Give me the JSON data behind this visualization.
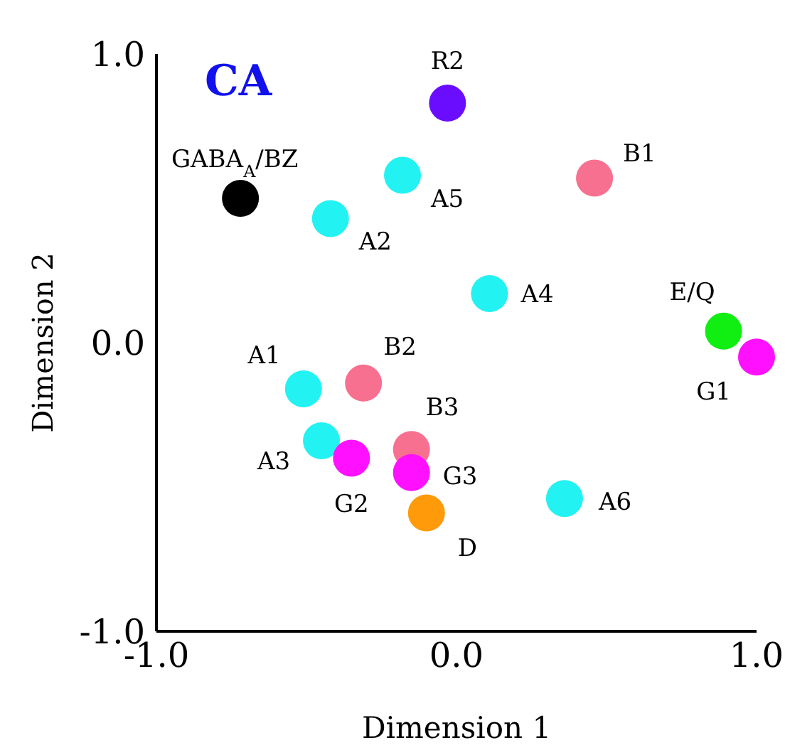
{
  "chart_data": {
    "type": "scatter",
    "title": "CA",
    "xlabel": "Dimension 1",
    "ylabel": "Dimension 2",
    "x": [
      -0.03,
      -0.72,
      0.46,
      -0.18,
      -0.42,
      0.11,
      0.89,
      1.0,
      -0.31,
      -0.51,
      -0.45,
      -0.35,
      -0.15,
      -0.15,
      -0.1,
      0.36
    ],
    "values": [
      0.83,
      0.5,
      0.57,
      0.58,
      0.43,
      0.17,
      0.04,
      -0.05,
      -0.14,
      -0.16,
      -0.34,
      -0.4,
      -0.37,
      -0.45,
      -0.59,
      -0.54
    ],
    "colors": [
      "#6a0dff",
      "#000000",
      "#f8708f",
      "#22f2f2",
      "#22f2f2",
      "#22f2f2",
      "#11ee11",
      "#ff11ff",
      "#f8708f",
      "#22f2f2",
      "#22f2f2",
      "#ff11ff",
      "#f8708f",
      "#ff11ff",
      "#ff9a0a",
      "#22f2f2"
    ],
    "annotations": [
      {
        "text": "R2",
        "x": -0.03,
        "y": 0.83
      },
      {
        "text": "GABA$_{A}$/BZ",
        "x": -0.72,
        "y": 0.5
      },
      {
        "text": "B1",
        "x": 0.46,
        "y": 0.57
      },
      {
        "text": "A5",
        "x": -0.18,
        "y": 0.58
      },
      {
        "text": "A2",
        "x": -0.42,
        "y": 0.43
      },
      {
        "text": "A4",
        "x": 0.11,
        "y": 0.17
      },
      {
        "text": "E/Q",
        "x": 0.89,
        "y": 0.04
      },
      {
        "text": "G1",
        "x": 1.0,
        "y": -0.05
      },
      {
        "text": "B2",
        "x": -0.31,
        "y": -0.14
      },
      {
        "text": "A1",
        "x": -0.51,
        "y": -0.16
      },
      {
        "text": "A3",
        "x": -0.45,
        "y": -0.34
      },
      {
        "text": "G2",
        "x": -0.35,
        "y": -0.4
      },
      {
        "text": "B3",
        "x": -0.15,
        "y": -0.37
      },
      {
        "text": "G3",
        "x": -0.15,
        "y": -0.45
      },
      {
        "text": "D",
        "x": -0.1,
        "y": -0.59
      },
      {
        "text": "A6",
        "x": 0.36,
        "y": -0.54
      }
    ],
    "xlim": [
      -1,
      1
    ],
    "ylim": [
      -1,
      1
    ],
    "xticks": [
      {
        "value": -1,
        "label": "-1.0"
      },
      {
        "value": 0,
        "label": "0.0"
      },
      {
        "value": 1,
        "label": "1.0"
      }
    ],
    "yticks": [
      {
        "value": -1,
        "label": "-1.0"
      },
      {
        "value": 0,
        "label": "0.0"
      },
      {
        "value": 1,
        "label": "1.0"
      }
    ],
    "grid": false,
    "legend": false,
    "marker": "circle"
  }
}
